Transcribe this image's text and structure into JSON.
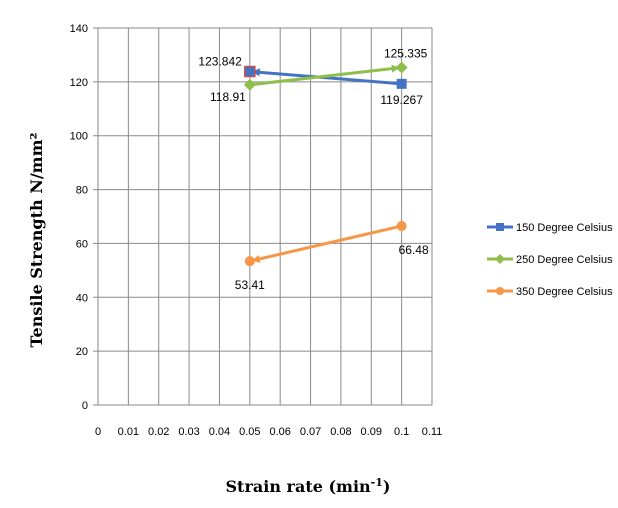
{
  "chart_data": {
    "type": "line",
    "xlabel": "Strain rate (min",
    "xlabel_sup": "-1",
    "xlabel_close": ")",
    "ylabel": "Tensile Strength N/mm²",
    "xlim": [
      0,
      0.11
    ],
    "ylim": [
      0,
      140
    ],
    "x_ticks": [
      "0",
      "0.01",
      "0.02",
      "0.03",
      "0.04",
      "0.05",
      "0.06",
      "0.07",
      "0.08",
      "0.09",
      "0.1",
      "0.11"
    ],
    "y_ticks": [
      "0",
      "20",
      "40",
      "60",
      "80",
      "100",
      "120",
      "140"
    ],
    "grid": true,
    "legend_position": "right",
    "series": [
      {
        "name": "150 Degree Celsius",
        "color": "#4472C4",
        "marker": "square",
        "points": [
          {
            "x": 0.1,
            "y": 119.267,
            "label": "119.267"
          },
          {
            "x": 0.05,
            "y": 123.842,
            "label": "123.842"
          }
        ]
      },
      {
        "name": "250 Degree Celsius",
        "color": "#8DBF4A",
        "marker": "diamond",
        "points": [
          {
            "x": 0.05,
            "y": 118.91,
            "label": "118.91"
          },
          {
            "x": 0.1,
            "y": 125.335,
            "label": "125.335"
          }
        ]
      },
      {
        "name": "350 Degree Celsius",
        "color": "#F79646",
        "marker": "circle",
        "points": [
          {
            "x": 0.1,
            "y": 66.48,
            "label": "66.48"
          },
          {
            "x": 0.05,
            "y": 53.41,
            "label": "53.41"
          }
        ]
      }
    ]
  }
}
